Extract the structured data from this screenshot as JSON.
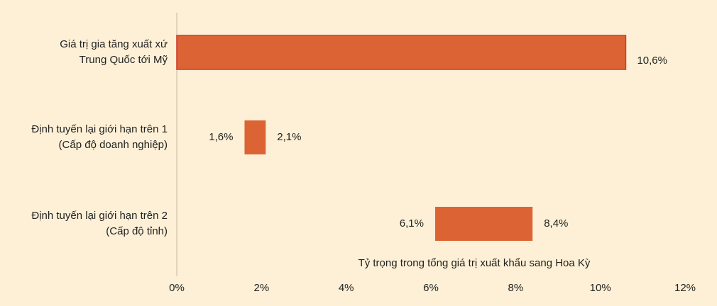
{
  "chart_data": {
    "type": "range_bar",
    "categories": [
      [
        "Giá trị gia tăng xuất xứ",
        "Trung Quốc tới Mỹ"
      ],
      [
        "Định tuyến lại giới hạn trên 1",
        "(Cấp độ doanh nghiệp)"
      ],
      [
        "Định tuyến lại giới hạn trên 2",
        "(Cấp độ tỉnh)"
      ]
    ],
    "low": [
      0,
      1.6,
      6.1
    ],
    "high": [
      10.6,
      2.1,
      8.4
    ],
    "low_labels": [
      null,
      "1,6%",
      "6,1%"
    ],
    "high_labels": [
      "10,6%",
      "2,1%",
      "8,4%"
    ],
    "color": "#dc6434",
    "bar_stroke": "#d0392b",
    "x_label": "Tỷ trọng trong tổng giá trị xuất khẩu sang Hoa Kỳ",
    "xlim": [
      0,
      12
    ],
    "xticks": [
      {
        "value": 0,
        "label": "0%"
      },
      {
        "value": 2,
        "label": "2%"
      },
      {
        "value": 4,
        "label": "4%"
      },
      {
        "value": 6,
        "label": "6%"
      },
      {
        "value": 8,
        "label": "8%"
      },
      {
        "value": 10,
        "label": "10%"
      },
      {
        "value": 12,
        "label": "12%"
      }
    ]
  }
}
